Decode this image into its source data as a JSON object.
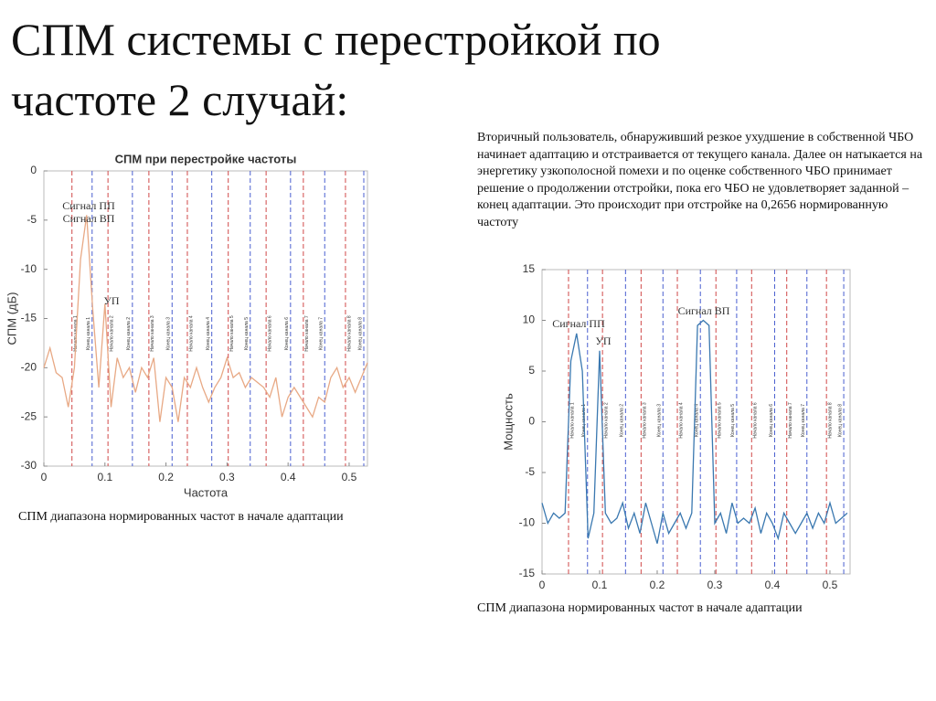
{
  "title_lines": [
    "СПМ системы с перестройкой по",
    "частоте 2 случай:"
  ],
  "description": "Вторичный пользователь, обнаруживший резкое ухудшение в собственной ЧБО  начинает адаптацию и отстраивается от текущего канала. Далее он натыкается на энергетику узкополосной помехи и по оценке собственного ЧБО принимает решение о продолжении отстройки, пока его ЧБО не удовлетворяет заданной – конец адаптации. Это происходит при отстройке на 0,2656 нормированную частоту",
  "chart_data": [
    {
      "type": "line",
      "title": "СПМ при перестройке частоты",
      "xlabel": "Частота",
      "ylabel": "СПМ (дБ)",
      "caption": "СПМ диапазона нормированных частот в начале адаптации",
      "x": [
        0,
        0.01,
        0.02,
        0.03,
        0.04,
        0.05,
        0.06,
        0.07,
        0.08,
        0.09,
        0.1,
        0.11,
        0.12,
        0.13,
        0.14,
        0.15,
        0.16,
        0.17,
        0.18,
        0.19,
        0.2,
        0.21,
        0.22,
        0.23,
        0.24,
        0.25,
        0.26,
        0.27,
        0.28,
        0.29,
        0.3,
        0.31,
        0.32,
        0.33,
        0.34,
        0.35,
        0.36,
        0.37,
        0.38,
        0.39,
        0.4,
        0.41,
        0.42,
        0.43,
        0.44,
        0.45,
        0.46,
        0.47,
        0.48,
        0.49,
        0.5,
        0.51,
        0.52,
        0.53
      ],
      "series": [
        {
          "color": "#e8a985",
          "values": [
            -20,
            -18,
            -20.5,
            -21,
            -24,
            -20,
            -9,
            -4.5,
            -14,
            -22,
            -13.5,
            -24,
            -19,
            -21,
            -20,
            -22.5,
            -20,
            -21,
            -19,
            -25.5,
            -21,
            -22,
            -25.5,
            -21,
            -22,
            -20,
            -22,
            -23.5,
            -22,
            -21,
            -19,
            -21,
            -20.5,
            -22,
            -21,
            -21.5,
            -22,
            -23,
            -21,
            -25,
            -23,
            -22,
            -23,
            -24,
            -25,
            -23,
            -23.5,
            -21,
            -20,
            -22,
            -21,
            -22.5,
            -21,
            -19.5
          ]
        }
      ],
      "xlim": [
        0,
        0.53
      ],
      "ylim": [
        -30,
        0
      ],
      "xticks": [
        0,
        0.1,
        0.2,
        0.3,
        0.4,
        0.5
      ],
      "yticks": [
        0,
        -5,
        -10,
        -15,
        -20,
        -25,
        -30
      ],
      "annotations": [
        "Сигнал ПП",
        "Сигнал ВП",
        "УП"
      ],
      "markers": [
        {
          "x": 0.046,
          "label": "Начало канала 1",
          "color": "#d04848"
        },
        {
          "x": 0.079,
          "label": "Конец канала 1",
          "color": "#4a5fd0"
        },
        {
          "x": 0.105,
          "label": "Начало канала 2",
          "color": "#d04848"
        },
        {
          "x": 0.145,
          "label": "Конец канала 2",
          "color": "#4a5fd0"
        },
        {
          "x": 0.172,
          "label": "Начало канала 3",
          "color": "#d04848"
        },
        {
          "x": 0.21,
          "label": "Конец канала 3",
          "color": "#4a5fd0"
        },
        {
          "x": 0.235,
          "label": "Начало канала 4",
          "color": "#d04848"
        },
        {
          "x": 0.275,
          "label": "Конец канала 4",
          "color": "#4a5fd0"
        },
        {
          "x": 0.302,
          "label": "Начало канала 5",
          "color": "#d04848"
        },
        {
          "x": 0.338,
          "label": "Конец канала 5",
          "color": "#4a5fd0"
        },
        {
          "x": 0.364,
          "label": "Начало канала 6",
          "color": "#d04848"
        },
        {
          "x": 0.404,
          "label": "Конец канала 6",
          "color": "#4a5fd0"
        },
        {
          "x": 0.425,
          "label": "Начало канала 7",
          "color": "#d04848"
        },
        {
          "x": 0.46,
          "label": "Конец канала 7",
          "color": "#4a5fd0"
        },
        {
          "x": 0.494,
          "label": "Начало канала 8",
          "color": "#d04848"
        },
        {
          "x": 0.524,
          "label": "Конец канала 8",
          "color": "#4a5fd0"
        }
      ]
    },
    {
      "type": "line",
      "ylabel": "Мощность",
      "caption": "СПМ диапазона нормированных частот в начале адаптации",
      "x": [
        0,
        0.01,
        0.02,
        0.03,
        0.04,
        0.05,
        0.06,
        0.07,
        0.08,
        0.09,
        0.1,
        0.11,
        0.12,
        0.13,
        0.14,
        0.15,
        0.16,
        0.17,
        0.18,
        0.19,
        0.2,
        0.21,
        0.22,
        0.23,
        0.24,
        0.25,
        0.26,
        0.27,
        0.28,
        0.29,
        0.3,
        0.31,
        0.32,
        0.33,
        0.34,
        0.35,
        0.36,
        0.37,
        0.38,
        0.39,
        0.4,
        0.41,
        0.42,
        0.43,
        0.44,
        0.45,
        0.46,
        0.47,
        0.48,
        0.49,
        0.5,
        0.51,
        0.52,
        0.53
      ],
      "series": [
        {
          "color": "#3a78b0",
          "values": [
            -8,
            -10,
            -9,
            -9.5,
            -9,
            6,
            8.7,
            5,
            -11.5,
            -9,
            7,
            -9,
            -10,
            -9.5,
            -8,
            -10.5,
            -9,
            -11,
            -8,
            -10,
            -12,
            -9,
            -11,
            -10,
            -9,
            -10.5,
            -9,
            9.5,
            10,
            9.5,
            -10,
            -9,
            -11,
            -8,
            -10,
            -9.5,
            -10,
            -8.5,
            -11,
            -9,
            -10,
            -11.5,
            -9,
            -10,
            -11,
            -10,
            -9,
            -10.5,
            -9,
            -10,
            -8,
            -10,
            -9.5,
            -9
          ]
        }
      ],
      "xlim": [
        0,
        0.535
      ],
      "ylim": [
        -15,
        15
      ],
      "xticks": [
        0,
        0.1,
        0.2,
        0.3,
        0.4,
        0.5
      ],
      "yticks": [
        15,
        10,
        5,
        0,
        -5,
        -10,
        -15
      ],
      "annotations": [
        "Сигнал ПП",
        "УП",
        "Сигнал ВП"
      ],
      "markers": [
        {
          "x": 0.046,
          "label": "Начало канала 1",
          "color": "#d04848"
        },
        {
          "x": 0.079,
          "label": "Конец канала 1",
          "color": "#4a5fd0"
        },
        {
          "x": 0.105,
          "label": "Начало канала 2",
          "color": "#d04848"
        },
        {
          "x": 0.145,
          "label": "Конец канала 2",
          "color": "#4a5fd0"
        },
        {
          "x": 0.172,
          "label": "Начало канала 3",
          "color": "#d04848"
        },
        {
          "x": 0.21,
          "label": "Конец канала 3",
          "color": "#4a5fd0"
        },
        {
          "x": 0.235,
          "label": "Начало канала 4",
          "color": "#d04848"
        },
        {
          "x": 0.275,
          "label": "Конец канала 4",
          "color": "#4a5fd0"
        },
        {
          "x": 0.302,
          "label": "Начало канала 5",
          "color": "#d04848"
        },
        {
          "x": 0.338,
          "label": "Конец канала 5",
          "color": "#4a5fd0"
        },
        {
          "x": 0.364,
          "label": "Начало канала 6",
          "color": "#d04848"
        },
        {
          "x": 0.404,
          "label": "Конец канала 6",
          "color": "#4a5fd0"
        },
        {
          "x": 0.425,
          "label": "Начало канала 7",
          "color": "#d04848"
        },
        {
          "x": 0.46,
          "label": "Конец канала 7",
          "color": "#4a5fd0"
        },
        {
          "x": 0.494,
          "label": "Начало канала 8",
          "color": "#d04848"
        },
        {
          "x": 0.524,
          "label": "Конец канала 8",
          "color": "#4a5fd0"
        }
      ]
    }
  ]
}
